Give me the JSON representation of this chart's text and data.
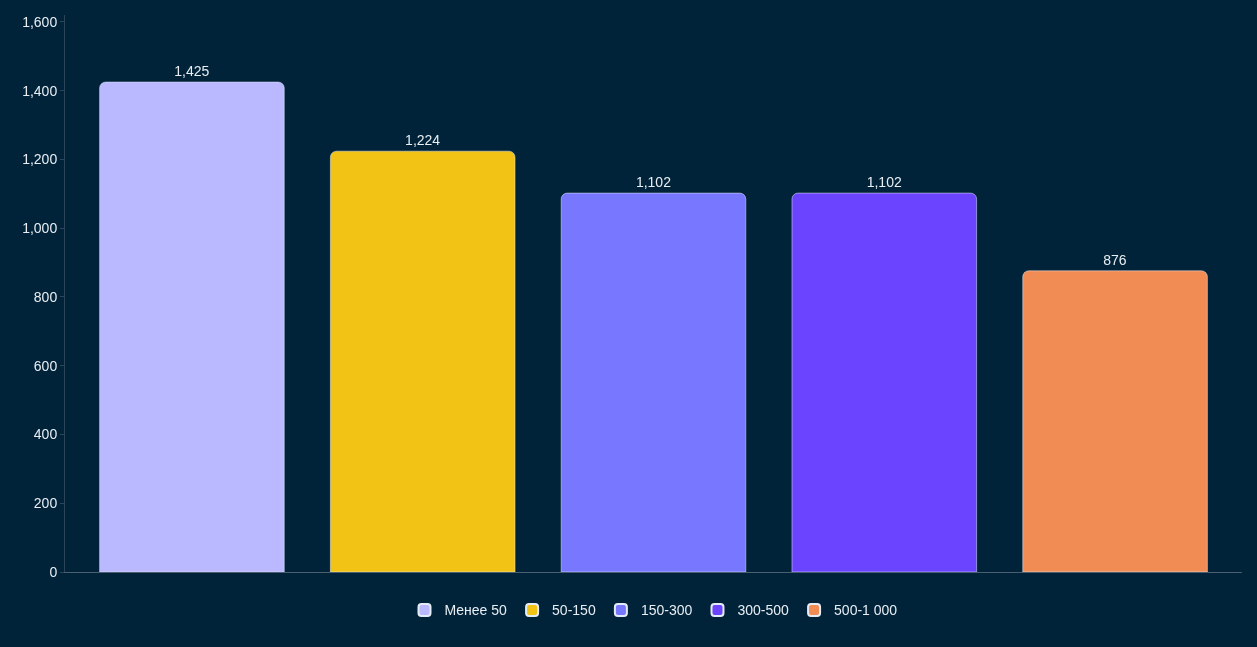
{
  "chart_data": {
    "type": "bar",
    "categories": [
      null,
      null,
      null,
      null,
      null
    ],
    "series": [
      {
        "name": "Менее 50",
        "color": "#bab8ff",
        "values": [
          1425,
          null,
          null,
          null,
          null
        ],
        "value_labels": [
          "1,425",
          null,
          null,
          null,
          null
        ]
      },
      {
        "name": "50-150",
        "color": "#f2c314",
        "values": [
          null,
          1224,
          null,
          null,
          null
        ],
        "value_labels": [
          null,
          "1,224",
          null,
          null,
          null
        ]
      },
      {
        "name": "150-300",
        "color": "#7777ff",
        "values": [
          null,
          null,
          1102,
          null,
          null
        ],
        "value_labels": [
          null,
          null,
          "1,102",
          null,
          null
        ]
      },
      {
        "name": "300-500",
        "color": "#6b44ff",
        "values": [
          null,
          null,
          null,
          1102,
          null
        ],
        "value_labels": [
          null,
          null,
          null,
          "1,102",
          null
        ]
      },
      {
        "name": "500-1 000",
        "color": "#f28c55",
        "values": [
          null,
          null,
          null,
          null,
          876
        ],
        "value_labels": [
          null,
          null,
          null,
          null,
          "876"
        ]
      }
    ],
    "ylim": [
      0,
      1620
    ],
    "yticks": [
      0,
      200,
      400,
      600,
      800,
      {
        "value": 1000,
        "label": "1,000"
      },
      {
        "value": 1200,
        "label": "1,200"
      },
      {
        "value": 1400,
        "label": "1,400"
      },
      {
        "value": 1600,
        "label": "1,600"
      }
    ],
    "grid": false,
    "legend": "bottom"
  }
}
